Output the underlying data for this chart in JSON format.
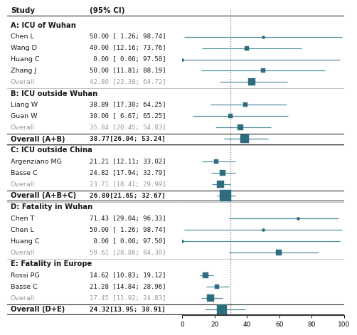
{
  "sections": [
    {
      "label": "A: ICU of Wuhan",
      "is_grand_section": false,
      "studies": [
        {
          "name": "Chen L",
          "est": 50.0,
          "lo": 1.26,
          "hi": 98.74,
          "is_overall": false,
          "is_grand": false,
          "dot_size": 3,
          "ci_str": "50.00 [ 1.26; 98.74]"
        },
        {
          "name": "Wang D",
          "est": 40.0,
          "lo": 12.16,
          "hi": 73.76,
          "is_overall": false,
          "is_grand": false,
          "dot_size": 5,
          "ci_str": "40.00 [12.16; 73.76]"
        },
        {
          "name": "Huang C",
          "est": 0.0,
          "lo": 0.0,
          "hi": 97.5,
          "is_overall": false,
          "is_grand": false,
          "dot_size": 3,
          "ci_str": " 0.00 [ 0.00; 97.50]"
        },
        {
          "name": "Zhang J",
          "est": 50.0,
          "lo": 11.81,
          "hi": 88.19,
          "is_overall": false,
          "is_grand": false,
          "dot_size": 4,
          "ci_str": "50.00 [11.81; 88.19]"
        },
        {
          "name": "Overall",
          "est": 42.8,
          "lo": 23.38,
          "hi": 64.72,
          "is_overall": true,
          "is_grand": false,
          "dot_size": 7,
          "ci_str": "42.80 [23.38; 64.72]"
        }
      ]
    },
    {
      "label": "B: ICU outside Wuhan",
      "is_grand_section": false,
      "studies": [
        {
          "name": "Liang W",
          "est": 38.89,
          "lo": 17.3,
          "hi": 64.25,
          "is_overall": false,
          "is_grand": false,
          "dot_size": 5,
          "ci_str": "38.89 [17.30; 64.25]"
        },
        {
          "name": "Guan W",
          "est": 30.0,
          "lo": 6.67,
          "hi": 65.25,
          "is_overall": false,
          "is_grand": false,
          "dot_size": 4,
          "ci_str": "30.00 [ 6.67; 65.25]"
        },
        {
          "name": "Overall",
          "est": 35.84,
          "lo": 20.45,
          "hi": 54.83,
          "is_overall": true,
          "is_grand": false,
          "dot_size": 6,
          "ci_str": "35.84 [20.45; 54.83]"
        }
      ]
    },
    {
      "label": "Overall (A+B)",
      "is_grand_section": true,
      "studies": [
        {
          "name": "Overall (A+B)",
          "est": 38.77,
          "lo": 26.04,
          "hi": 53.24,
          "is_overall": false,
          "is_grand": true,
          "dot_size": 9,
          "ci_str": "38.77[26.04; 53.24]"
        }
      ]
    },
    {
      "label": "C: ICU outside China",
      "is_grand_section": false,
      "studies": [
        {
          "name": "Argenziano MG",
          "est": 21.21,
          "lo": 12.11,
          "hi": 33.02,
          "is_overall": false,
          "is_grand": false,
          "dot_size": 5,
          "ci_str": "21.21 [12.11; 33.02]"
        },
        {
          "name": "Basse C",
          "est": 24.82,
          "lo": 17.94,
          "hi": 32.79,
          "is_overall": false,
          "is_grand": false,
          "dot_size": 6,
          "ci_str": "24.82 [17.94; 32.79]"
        },
        {
          "name": "Overall",
          "est": 23.71,
          "lo": 18.41,
          "hi": 29.99,
          "is_overall": true,
          "is_grand": false,
          "dot_size": 7,
          "ci_str": "23.71 [18.41; 29.99]"
        }
      ]
    },
    {
      "label": "Overall (A+B+C)",
      "is_grand_section": true,
      "studies": [
        {
          "name": "Overall (A+B+C)",
          "est": 26.8,
          "lo": 21.65,
          "hi": 32.67,
          "is_overall": false,
          "is_grand": true,
          "dot_size": 11,
          "ci_str": "26.80[21.65; 32.67]"
        }
      ]
    },
    {
      "label": "D: Fatality in Wuhan",
      "is_grand_section": false,
      "studies": [
        {
          "name": "Chen T",
          "est": 71.43,
          "lo": 29.04,
          "hi": 96.33,
          "is_overall": false,
          "is_grand": false,
          "dot_size": 3,
          "ci_str": "71.43 [29.04; 96.33]"
        },
        {
          "name": "Chen L",
          "est": 50.0,
          "lo": 1.26,
          "hi": 98.74,
          "is_overall": false,
          "is_grand": false,
          "dot_size": 3,
          "ci_str": "50.00 [ 1.26; 98.74]"
        },
        {
          "name": "Huang C",
          "est": 0.0,
          "lo": 0.0,
          "hi": 97.5,
          "is_overall": false,
          "is_grand": false,
          "dot_size": 3,
          "ci_str": " 0.00 [ 0.00; 97.50]"
        },
        {
          "name": "Overall",
          "est": 59.61,
          "lo": 28.86,
          "hi": 84.3,
          "is_overall": true,
          "is_grand": false,
          "dot_size": 6,
          "ci_str": "59.61 [28.86; 84.30]"
        }
      ]
    },
    {
      "label": "E: Fatality in Europe",
      "is_grand_section": false,
      "studies": [
        {
          "name": "Rossi PG",
          "est": 14.62,
          "lo": 10.83,
          "hi": 19.12,
          "is_overall": false,
          "is_grand": false,
          "dot_size": 6,
          "ci_str": "14.62 [10.83; 19.12]"
        },
        {
          "name": "Basse C",
          "est": 21.28,
          "lo": 14.84,
          "hi": 28.96,
          "is_overall": false,
          "is_grand": false,
          "dot_size": 5,
          "ci_str": "21.28 [14.84; 28.96]"
        },
        {
          "name": "Overall",
          "est": 17.45,
          "lo": 11.92,
          "hi": 24.83,
          "is_overall": true,
          "is_grand": false,
          "dot_size": 7,
          "ci_str": "17.45 [11.92; 24.83]"
        }
      ]
    },
    {
      "label": "Overall (D+E)",
      "is_grand_section": true,
      "studies": [
        {
          "name": "Overall (D+E)",
          "est": 24.32,
          "lo": 13.95,
          "hi": 38.91,
          "is_overall": false,
          "is_grand": true,
          "dot_size": 10,
          "ci_str": "24.32[13.95; 38.91]"
        }
      ]
    }
  ],
  "xmin": 0,
  "xmax": 100,
  "xticks": [
    0,
    20,
    40,
    60,
    80,
    100
  ],
  "vline_x": 30,
  "colors": {
    "section_label": "#1a1a1a",
    "study_name": "#1a1a1a",
    "overall_name": "#999999",
    "grand_name": "#1a1a1a",
    "ci_text_normal": "#1a1a1a",
    "ci_text_overall": "#999999",
    "ci_text_grand": "#1a1a1a",
    "marker_color": "#2e6d7e",
    "line_color": "#4a8a9a",
    "axis_color": "#333333",
    "header_color": "#1a1a1a",
    "vline_color": "#777777",
    "border_color": "#333333"
  }
}
